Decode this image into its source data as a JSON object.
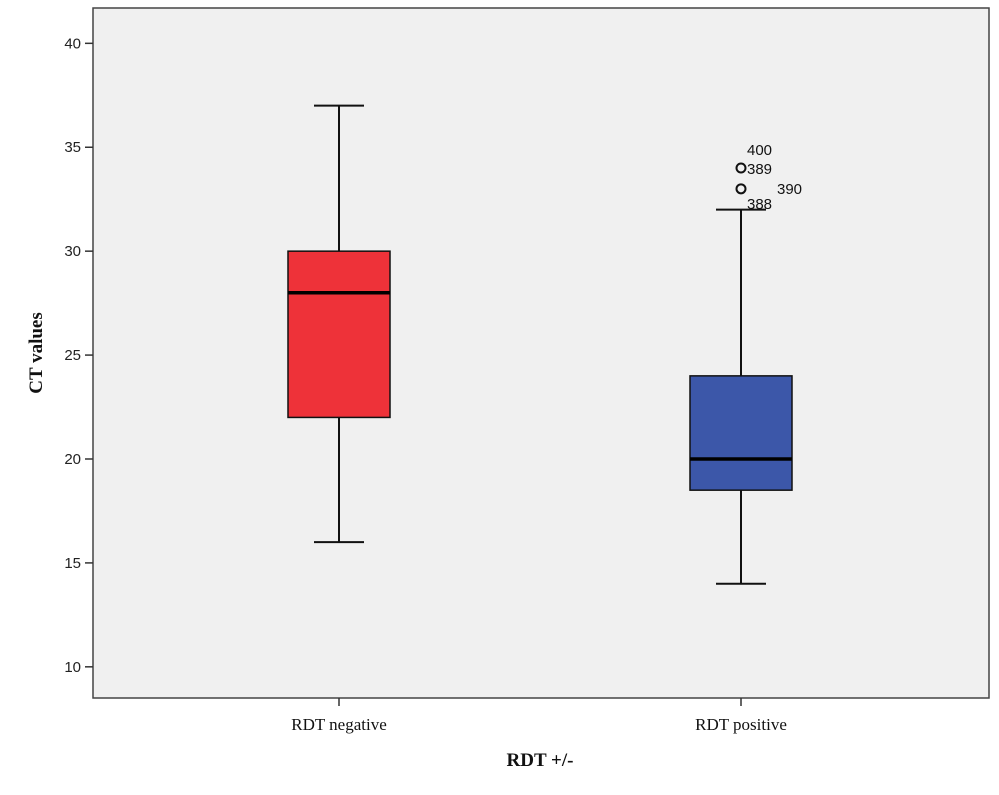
{
  "chart_data": {
    "type": "box",
    "xlabel": "RDT +/-",
    "ylabel": "CT values",
    "ylim": [
      8.5,
      41.7
    ],
    "yticks": [
      10,
      15,
      20,
      25,
      30,
      35,
      40
    ],
    "grid": false,
    "legend": "none",
    "categories": [
      "RDT negative",
      "RDT positive"
    ],
    "boxes": [
      {
        "category": "RDT negative",
        "whisker_low": 16,
        "q1": 22,
        "median": 28,
        "q3": 30,
        "whisker_high": 37,
        "color": "#ee3239",
        "outliers": []
      },
      {
        "category": "RDT positive",
        "whisker_low": 14,
        "q1": 18.5,
        "median": 20,
        "q3": 24,
        "whisker_high": 32,
        "color": "#3c57a9",
        "outliers": [
          {
            "value": 34,
            "labels": [
              "400",
              "389"
            ]
          },
          {
            "value": 33,
            "labels": [
              "390",
              "388"
            ]
          }
        ]
      }
    ]
  }
}
